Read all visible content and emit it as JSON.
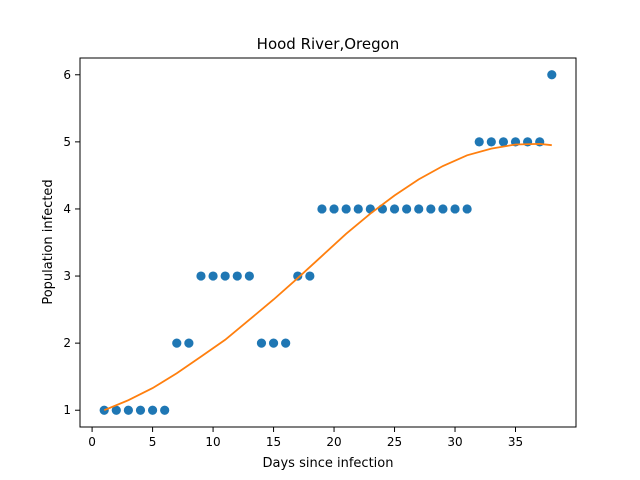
{
  "chart_data": {
    "type": "scatter",
    "title": "Hood River,Oregon",
    "xlabel": "Days since infection",
    "ylabel": "Population infected",
    "xlim": [
      -1,
      40
    ],
    "ylim": [
      0.75,
      6.25
    ],
    "x_ticks": [
      0,
      5,
      10,
      15,
      20,
      25,
      30,
      35
    ],
    "y_ticks": [
      1,
      2,
      3,
      4,
      5,
      6
    ],
    "grid": false,
    "series": [
      {
        "kind": "scatter",
        "color": "#1f77b4",
        "x": [
          1,
          2,
          3,
          4,
          5,
          6,
          7,
          8,
          9,
          10,
          11,
          12,
          13,
          14,
          15,
          16,
          17,
          18,
          19,
          20,
          21,
          22,
          23,
          24,
          25,
          26,
          27,
          28,
          29,
          30,
          31,
          32,
          33,
          34,
          35,
          36,
          37,
          38
        ],
        "y": [
          1,
          1,
          1,
          1,
          1,
          1,
          2,
          2,
          3,
          3,
          3,
          3,
          3,
          2,
          2,
          2,
          3,
          3,
          4,
          4,
          4,
          4,
          4,
          4,
          4,
          4,
          4,
          4,
          4,
          4,
          4,
          5,
          5,
          5,
          5,
          5,
          5,
          6
        ]
      },
      {
        "kind": "line",
        "color": "#ff7f0e",
        "x": [
          1,
          3,
          5,
          7,
          9,
          11,
          13,
          15,
          17,
          19,
          21,
          23,
          25,
          27,
          29,
          31,
          33,
          35,
          37,
          38
        ],
        "y": [
          1.0,
          1.15,
          1.33,
          1.55,
          1.8,
          2.05,
          2.35,
          2.65,
          2.97,
          3.3,
          3.63,
          3.93,
          4.2,
          4.44,
          4.64,
          4.8,
          4.9,
          4.96,
          4.97,
          4.95
        ]
      }
    ]
  }
}
